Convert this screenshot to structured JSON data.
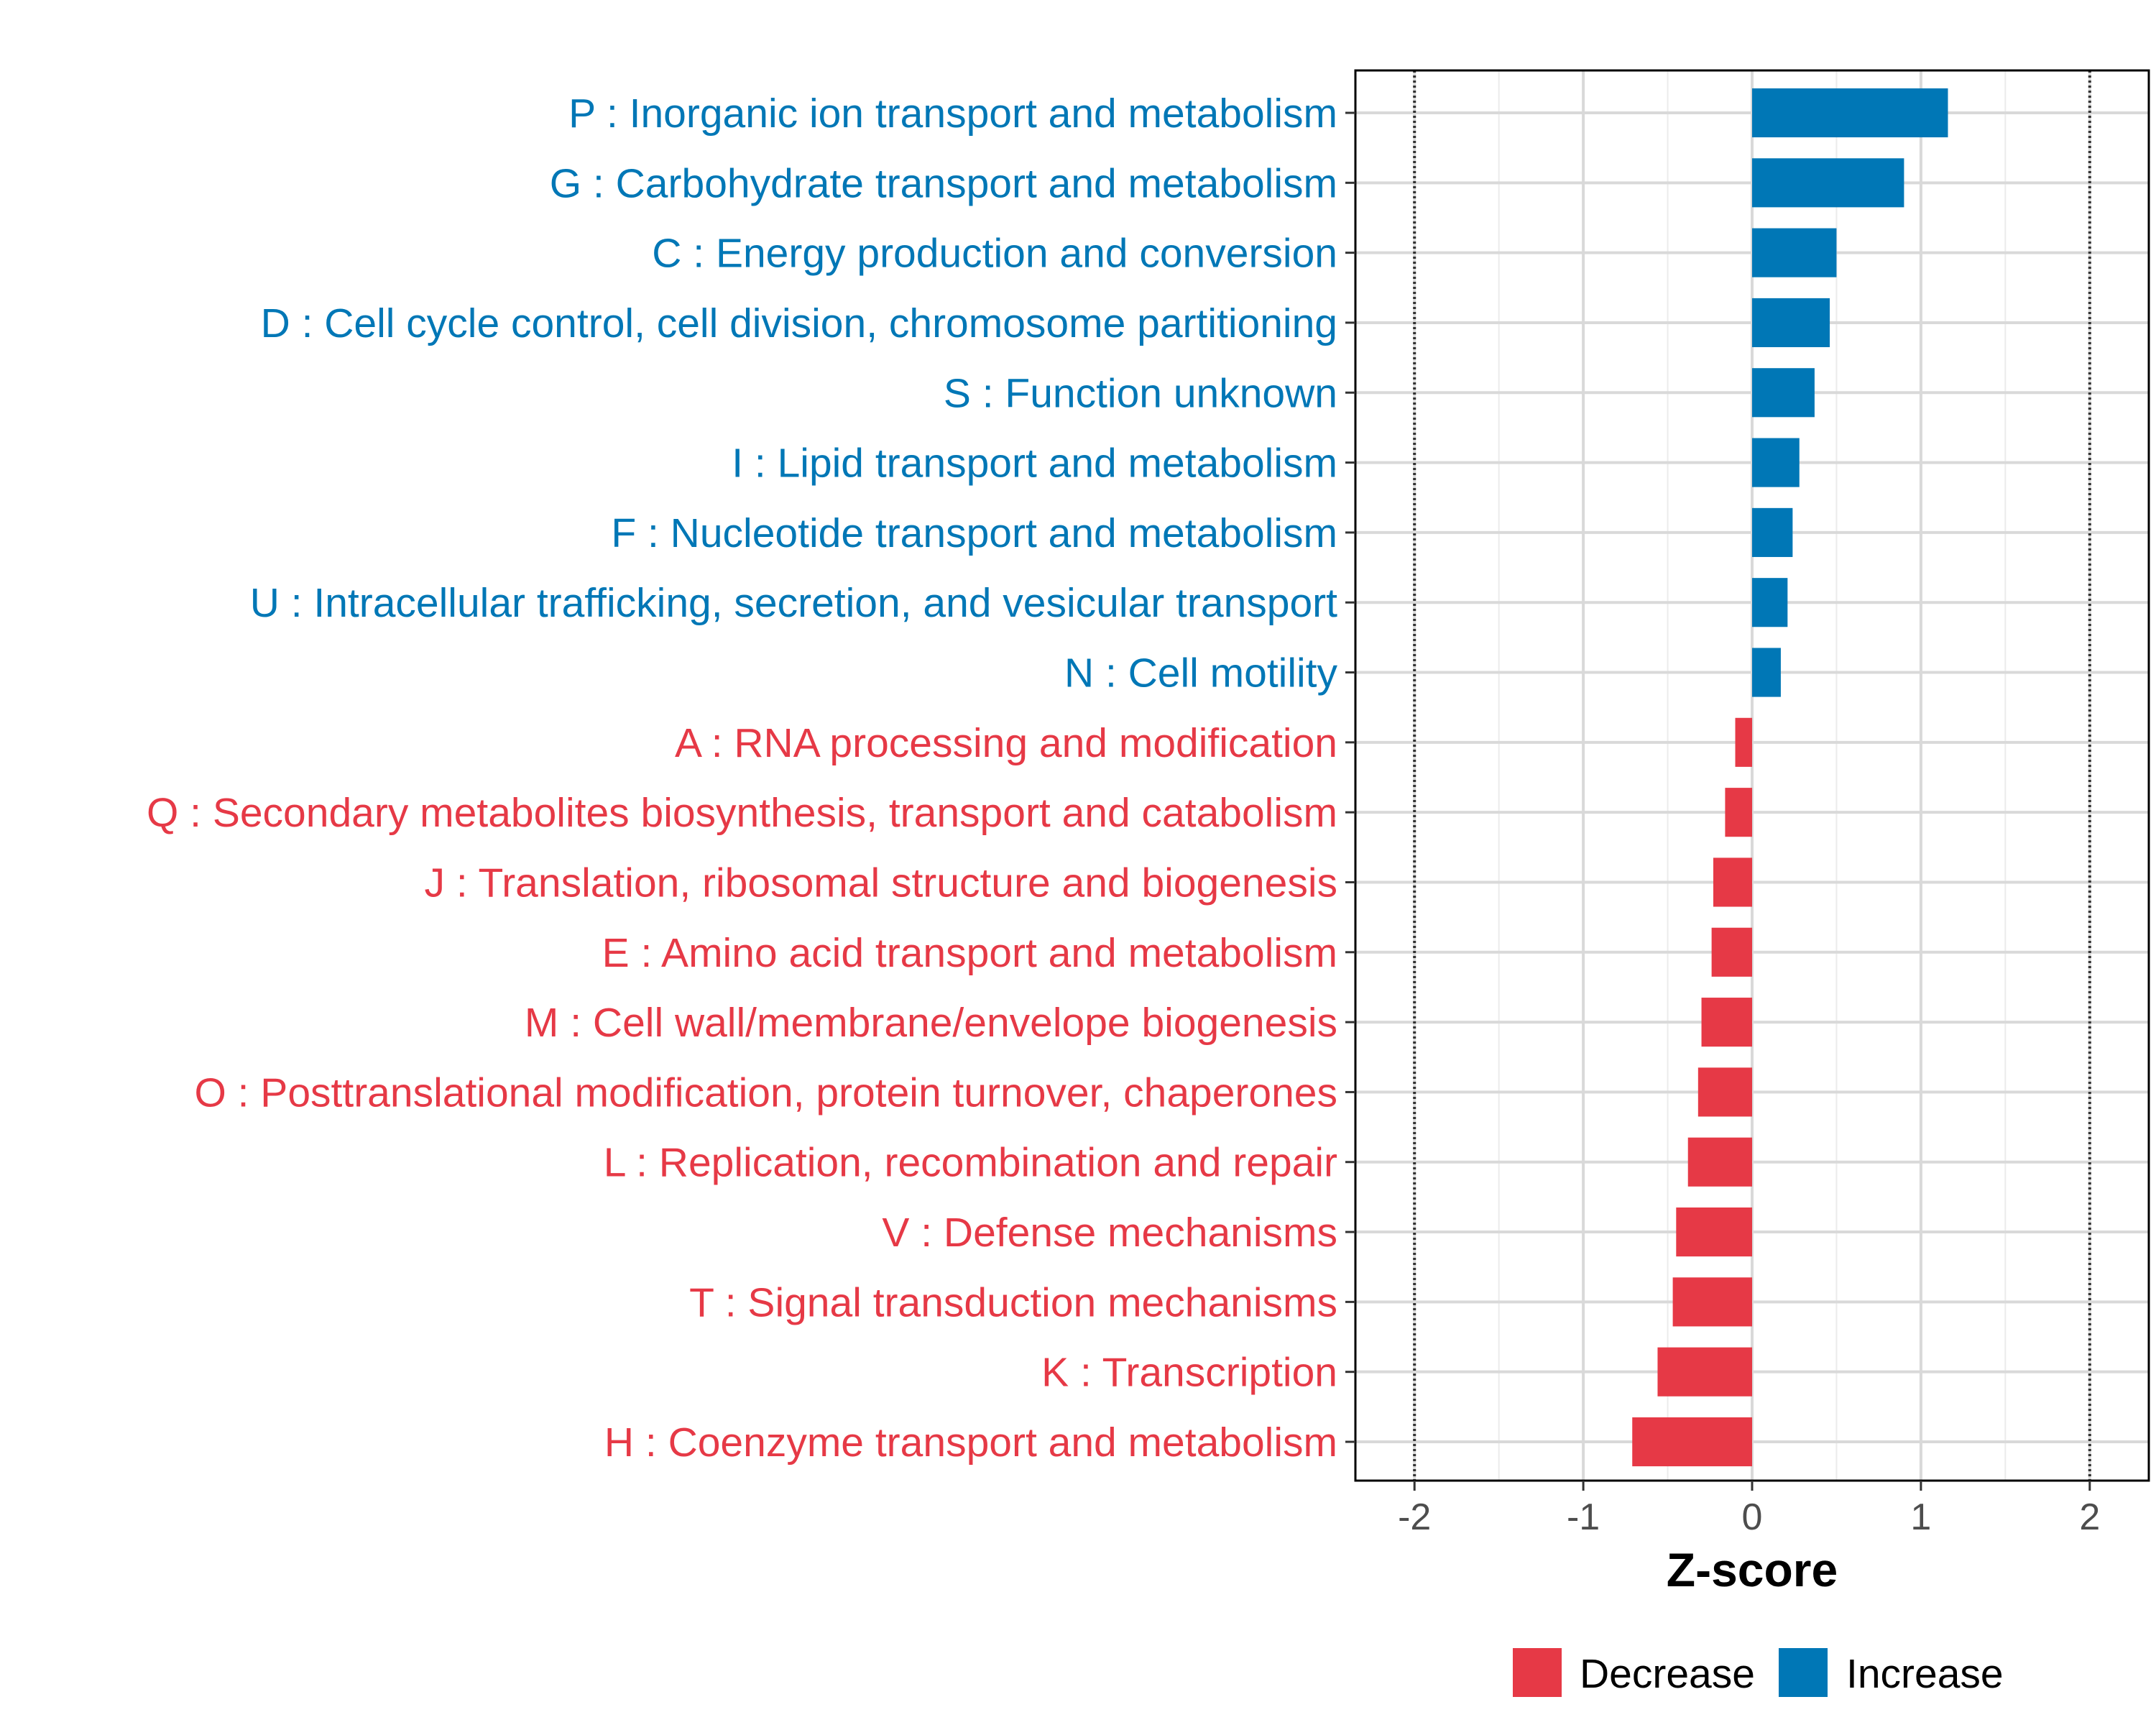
{
  "chart_data": {
    "type": "bar",
    "orientation": "horizontal",
    "title": "",
    "xlabel": "Z-score",
    "ylabel": "",
    "xlim": [
      -2.35,
      2.35
    ],
    "xticks": [
      -2,
      -1,
      0,
      1,
      2
    ],
    "xtick_labels": [
      "-2",
      "-1",
      "0",
      "1",
      "2"
    ],
    "reference_lines": [
      -2,
      2
    ],
    "grid": true,
    "categories": [
      "P : Inorganic ion transport and metabolism",
      "G : Carbohydrate transport and metabolism",
      "C : Energy production and conversion",
      "D : Cell cycle control, cell division, chromosome partitioning",
      "S : Function unknown",
      "I : Lipid transport and metabolism",
      "F : Nucleotide transport and metabolism",
      "U : Intracellular trafficking, secretion, and vesicular transport",
      "N : Cell motility",
      "A : RNA processing and modification",
      "Q : Secondary metabolites biosynthesis, transport and catabolism",
      "J : Translation, ribosomal structure and biogenesis",
      "E : Amino acid transport and metabolism",
      "M : Cell wall/membrane/envelope biogenesis",
      "O : Posttranslational modification, protein turnover, chaperones",
      "L : Replication, recombination and repair",
      "V : Defense mechanisms",
      "T : Signal transduction mechanisms",
      "K : Transcription",
      "H : Coenzyme transport and metabolism"
    ],
    "values": [
      1.16,
      0.9,
      0.5,
      0.46,
      0.37,
      0.28,
      0.24,
      0.21,
      0.17,
      -0.1,
      -0.16,
      -0.23,
      -0.24,
      -0.3,
      -0.32,
      -0.38,
      -0.45,
      -0.47,
      -0.56,
      -0.71
    ],
    "groups": [
      "Increase",
      "Increase",
      "Increase",
      "Increase",
      "Increase",
      "Increase",
      "Increase",
      "Increase",
      "Increase",
      "Decrease",
      "Decrease",
      "Decrease",
      "Decrease",
      "Decrease",
      "Decrease",
      "Decrease",
      "Decrease",
      "Decrease",
      "Decrease",
      "Decrease"
    ],
    "legend": {
      "position": "bottom",
      "entries": [
        {
          "label": "Decrease",
          "color": "#e63946"
        },
        {
          "label": "Increase",
          "color": "#0077b6"
        }
      ]
    },
    "colors": {
      "Decrease": "#e63946",
      "Increase": "#0077b6"
    }
  }
}
